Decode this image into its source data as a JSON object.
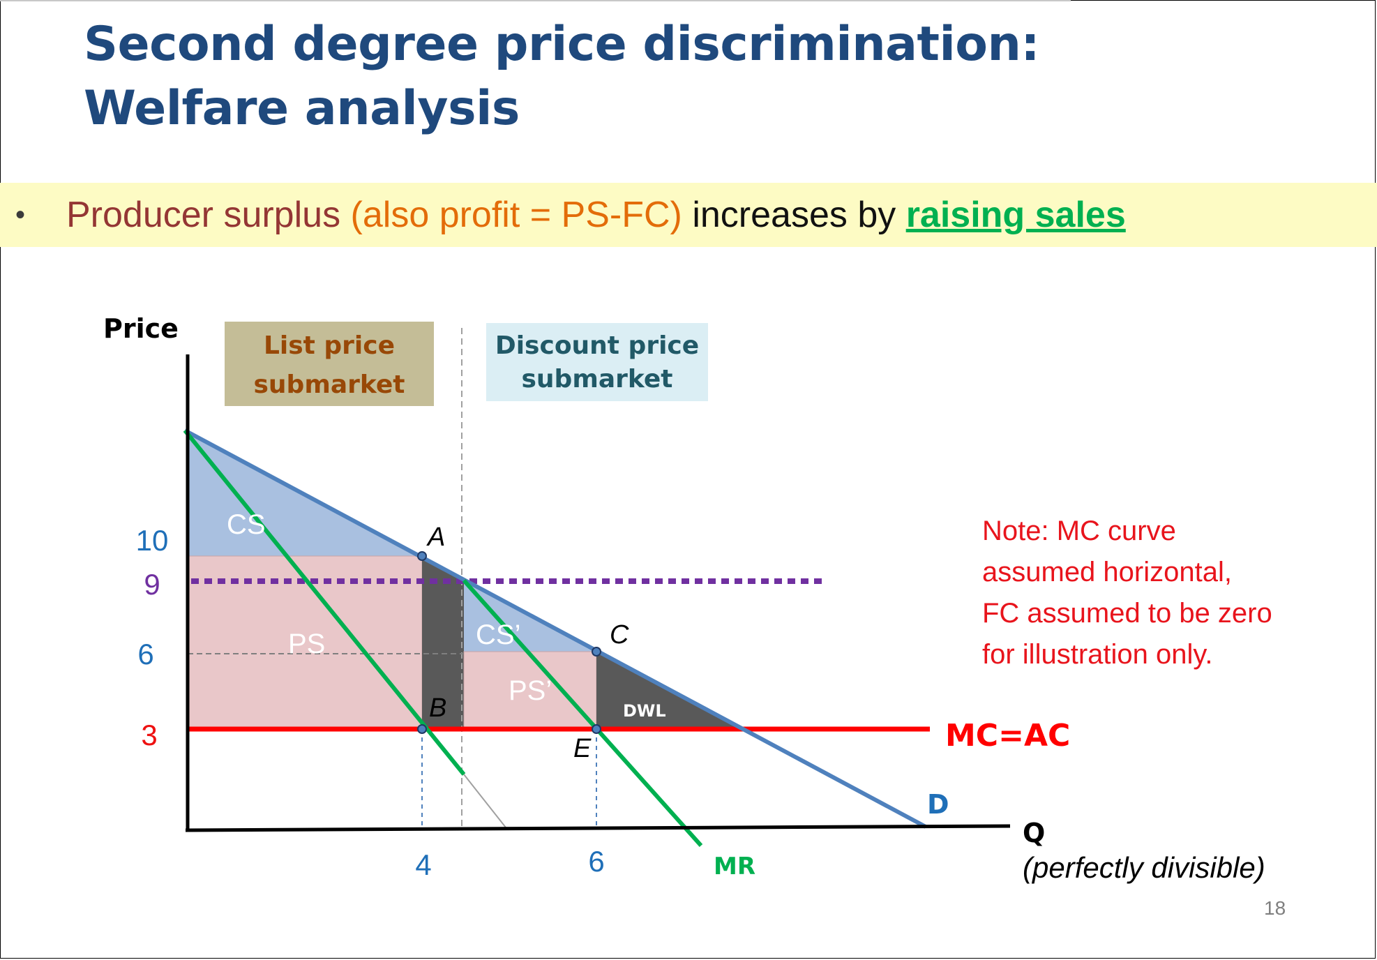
{
  "slide": {
    "title_line1": "Second degree price discrimination:",
    "title_line2": "Welfare analysis",
    "page_number": "18"
  },
  "bullet": {
    "marker": "•",
    "part1": "Producer surplus ",
    "part2": "(also profit = PS-FC)",
    "part3": " increases by ",
    "part4": "raising sales"
  },
  "diagram": {
    "y_axis_label": "Price",
    "x_axis_label": "Q",
    "x_axis_note": "(perfectly divisible)",
    "boxes": {
      "list_line1": "List price",
      "list_line2": "submarket",
      "discount_line1": "Discount price",
      "discount_line2": "submarket"
    },
    "price_ticks": [
      {
        "label": "10",
        "value": 10,
        "color": "#1f6fb8"
      },
      {
        "label": "9",
        "value": 9,
        "color": "#7030a0"
      },
      {
        "label": "6",
        "value": 6,
        "color": "#1f6fb8"
      },
      {
        "label": "3",
        "value": 3,
        "color": "#ee1111"
      }
    ],
    "quantity_ticks": [
      {
        "label": "4",
        "value": 4
      },
      {
        "label": "6",
        "value": 6
      }
    ],
    "curves": {
      "demand": "D",
      "marginal_revenue": "MR",
      "marginal_cost": "MC=AC"
    },
    "points": {
      "A": "A",
      "B": "B",
      "C": "C",
      "E": "E"
    },
    "areas": {
      "cs": "CS",
      "ps": "PS",
      "cs_prime": "CS’",
      "ps_prime": "PS’",
      "dwl": "DWL"
    },
    "note": [
      "Note: MC curve",
      "assumed horizontal,",
      "FC assumed to be zero",
      "for illustration only."
    ],
    "colors": {
      "demand": "#4f81bd",
      "mr": "#00b050",
      "mc": "#ff0000",
      "price9": "#7030a0",
      "cs_fill": "#a9c0e0",
      "ps_fill": "#e9c7c9",
      "dwl_fill": "#595959",
      "list_box": "#c4bd97",
      "discount_box": "#dbeef4"
    }
  }
}
